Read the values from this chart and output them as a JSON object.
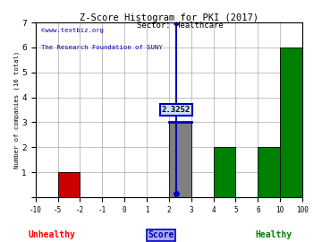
{
  "title": "Z-Score Histogram for PKI (2017)",
  "subtitle": "Sector: Healthcare",
  "watermark1": "©www.textbiz.org",
  "watermark2": "The Research Foundation of SUNY",
  "ylabel": "Number of companies (16 total)",
  "xlabel_center": "Score",
  "xlabel_left": "Unhealthy",
  "xlabel_right": "Healthy",
  "zscore_value": 2.3252,
  "zscore_label": "2.3252",
  "tick_labels": [
    "-10",
    "-5",
    "-2",
    "-1",
    "0",
    "1",
    "2",
    "3",
    "4",
    "5",
    "6",
    "10",
    "100"
  ],
  "bar_lefts": [
    1,
    2,
    3,
    4,
    5,
    6,
    7,
    8,
    9,
    10,
    11,
    12
  ],
  "counts": [
    0,
    1,
    0,
    0,
    0,
    0,
    3,
    0,
    2,
    0,
    2,
    6
  ],
  "bar_colors": [
    "#cc0000",
    "#cc0000",
    "#cc0000",
    "#cc0000",
    "#cc0000",
    "#cc0000",
    "#808080",
    "#008000",
    "#008000",
    "#008000",
    "#008000",
    "#008000"
  ],
  "ylim": [
    0,
    7
  ],
  "yticks": [
    0,
    1,
    2,
    3,
    4,
    5,
    6,
    7
  ],
  "grid_color": "#aaaaaa",
  "bg_color": "#ffffff",
  "marker_color": "#0000bb",
  "line_color": "#0000bb",
  "zscore_tick_index": 7.3252,
  "zscore_bar_bottom": 0.15
}
